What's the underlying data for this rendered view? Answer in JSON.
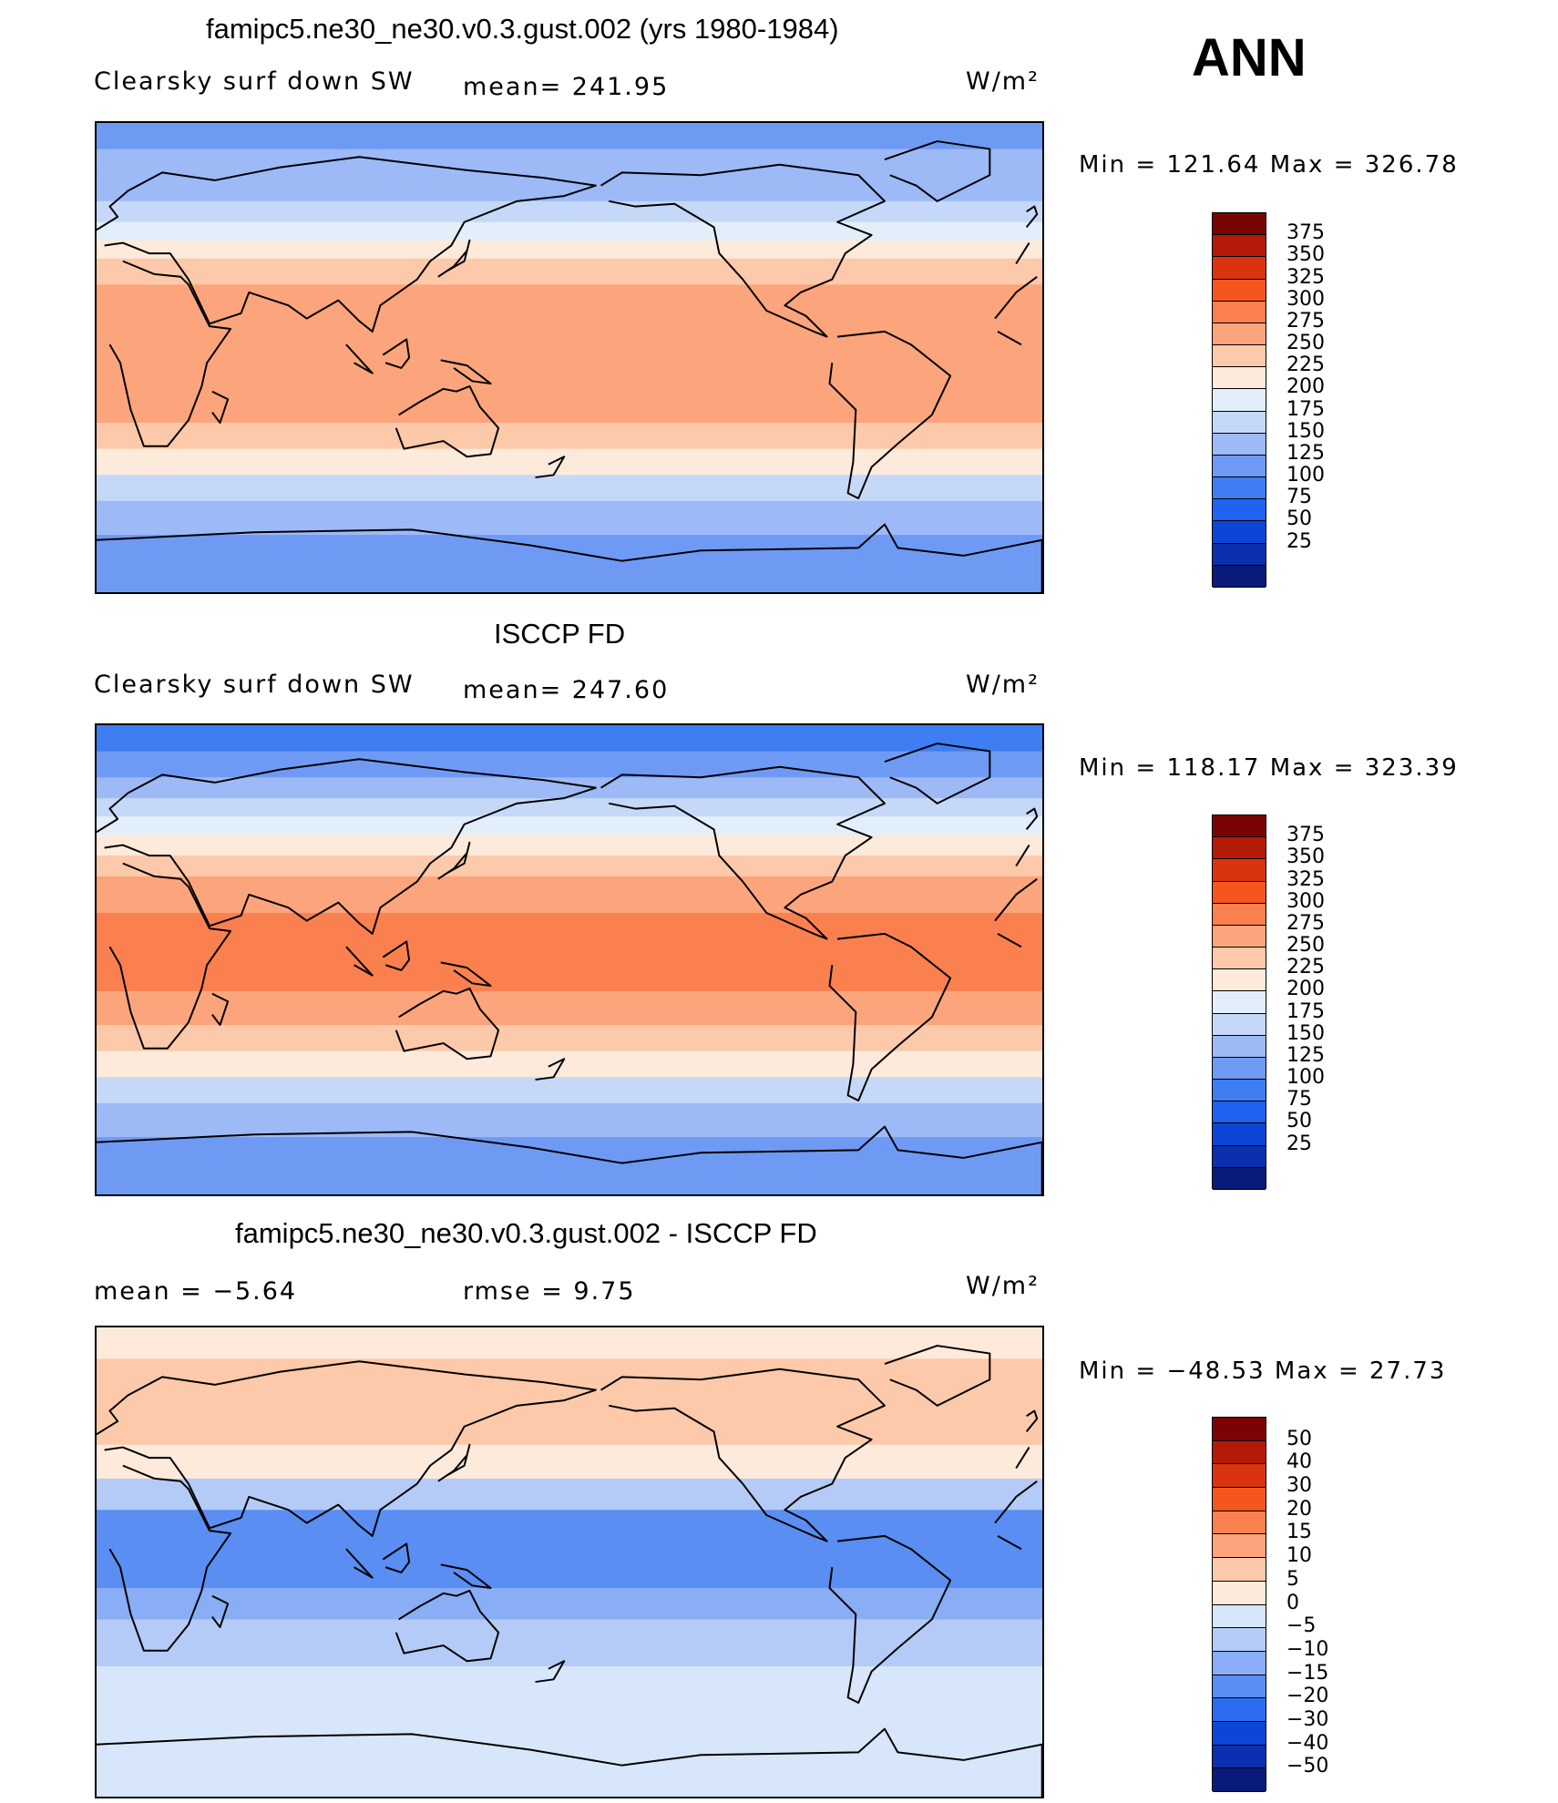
{
  "annotation": "ANN",
  "palette": {
    "abs": [
      "#0a1a7a",
      "#0b2fae",
      "#0d46d6",
      "#1f63f0",
      "#3e7ef2",
      "#6f9af4",
      "#9db9f6",
      "#c6d8f8",
      "#e3eefb",
      "#fdeadb",
      "#fdc9ab",
      "#fca57c",
      "#fb8050",
      "#f4561e",
      "#d9340f",
      "#b31a07",
      "#7a0404"
    ],
    "diff": [
      "#0a1a7a",
      "#0b2fae",
      "#0d46d6",
      "#2c6cf0",
      "#5a8ef2",
      "#89aef5",
      "#b4cbf7",
      "#d8e6fb",
      "#fdeadb",
      "#fdc9ab",
      "#fca57c",
      "#fb8050",
      "#f4561e",
      "#d9340f",
      "#b31a07",
      "#7a0404"
    ],
    "ocean_bg": "#ffffff"
  },
  "panels": [
    {
      "title": "famipc5.ne30_ne30.v0.3.gust.002 (yrs 1980-1984)",
      "left_label": "Clearsky surf down SW",
      "mid_label": "mean= 241.95",
      "units_label": "W/m²",
      "minmax": "Min = 121.64 Max = 326.78",
      "levels": [
        "375",
        "350",
        "325",
        "300",
        "275",
        "250",
        "225",
        "200",
        "175",
        "150",
        "125",
        "100",
        "75",
        "50",
        "25"
      ],
      "bands": [
        {
          "lat_from": 90,
          "lat_to": 80,
          "value": 130
        },
        {
          "lat_from": 80,
          "lat_to": 70,
          "value": 150
        },
        {
          "lat_from": 70,
          "lat_to": 60,
          "value": 165
        },
        {
          "lat_from": 60,
          "lat_to": 52,
          "value": 190
        },
        {
          "lat_from": 52,
          "lat_to": 45,
          "value": 212
        },
        {
          "lat_from": 45,
          "lat_to": 38,
          "value": 240
        },
        {
          "lat_from": 38,
          "lat_to": 28,
          "value": 262
        },
        {
          "lat_from": 28,
          "lat_to": -25,
          "value": 285
        },
        {
          "lat_from": -25,
          "lat_to": -35,
          "value": 262
        },
        {
          "lat_from": -35,
          "lat_to": -45,
          "value": 225
        },
        {
          "lat_from": -45,
          "lat_to": -55,
          "value": 190
        },
        {
          "lat_from": -55,
          "lat_to": -68,
          "value": 160
        },
        {
          "lat_from": -68,
          "lat_to": -90,
          "value": 135
        }
      ]
    },
    {
      "title": "ISCCP FD",
      "left_label": "Clearsky surf down SW",
      "mid_label": "mean= 247.60",
      "units_label": "W/m²",
      "minmax": "Min = 118.17 Max = 323.39",
      "levels": [
        "375",
        "350",
        "325",
        "300",
        "275",
        "250",
        "225",
        "200",
        "175",
        "150",
        "125",
        "100",
        "75",
        "50",
        "25"
      ],
      "bands": [
        {
          "lat_from": 90,
          "lat_to": 80,
          "value": 120
        },
        {
          "lat_from": 80,
          "lat_to": 70,
          "value": 140
        },
        {
          "lat_from": 70,
          "lat_to": 62,
          "value": 160
        },
        {
          "lat_from": 62,
          "lat_to": 55,
          "value": 185
        },
        {
          "lat_from": 55,
          "lat_to": 48,
          "value": 210
        },
        {
          "lat_from": 48,
          "lat_to": 40,
          "value": 238
        },
        {
          "lat_from": 40,
          "lat_to": 32,
          "value": 262
        },
        {
          "lat_from": 32,
          "lat_to": 18,
          "value": 287
        },
        {
          "lat_from": 18,
          "lat_to": -12,
          "value": 310
        },
        {
          "lat_from": -12,
          "lat_to": -25,
          "value": 287
        },
        {
          "lat_from": -25,
          "lat_to": -35,
          "value": 262
        },
        {
          "lat_from": -35,
          "lat_to": -45,
          "value": 225
        },
        {
          "lat_from": -45,
          "lat_to": -55,
          "value": 190
        },
        {
          "lat_from": -55,
          "lat_to": -68,
          "value": 155
        },
        {
          "lat_from": -68,
          "lat_to": -90,
          "value": 130
        }
      ]
    },
    {
      "title": "famipc5.ne30_ne30.v0.3.gust.002 - ISCCP FD",
      "left_label": "mean =   −5.64",
      "mid_label": "rmse =    9.75",
      "units_label": "W/m²",
      "minmax": "Min = −48.53 Max =  27.73",
      "levels": [
        "50",
        "40",
        "30",
        "20",
        "15",
        "10",
        "5",
        "0",
        "−5",
        "−10",
        "−15",
        "−20",
        "−30",
        "−40",
        "−50"
      ],
      "bands": [
        {
          "lat_from": 90,
          "lat_to": 78,
          "value": 3
        },
        {
          "lat_from": 78,
          "lat_to": 45,
          "value": 6
        },
        {
          "lat_from": 45,
          "lat_to": 32,
          "value": 2
        },
        {
          "lat_from": 32,
          "lat_to": 20,
          "value": -7
        },
        {
          "lat_from": 20,
          "lat_to": -10,
          "value": -17
        },
        {
          "lat_from": -10,
          "lat_to": -22,
          "value": -12
        },
        {
          "lat_from": -22,
          "lat_to": -40,
          "value": -8
        },
        {
          "lat_from": -40,
          "lat_to": -65,
          "value": -3
        },
        {
          "lat_from": -65,
          "lat_to": -90,
          "value": -2
        }
      ]
    }
  ]
}
